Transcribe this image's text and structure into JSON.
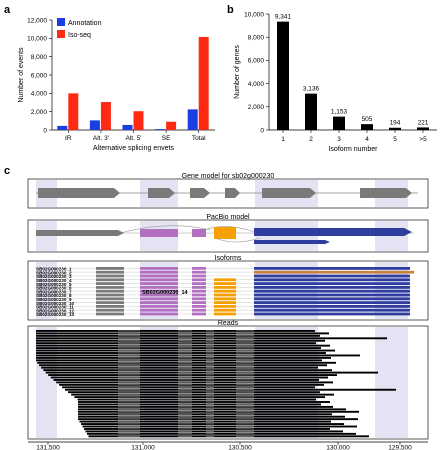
{
  "panel_labels": {
    "a": "a",
    "b": "b",
    "c": "c"
  },
  "chart_data": [
    {
      "type": "bar",
      "xlabel": "Alternative splicing envets",
      "ylabel": "Number of events",
      "categories": [
        "IR",
        "Alt. 3′",
        "Alt. 5′",
        "SE",
        "Total"
      ],
      "series": [
        {
          "name": "Annotation",
          "color": "#1a3fe0",
          "values": [
            450,
            1050,
            550,
            100,
            2250
          ]
        },
        {
          "name": "Iso-seq",
          "color": "#ff2a12",
          "values": [
            4000,
            3050,
            2050,
            900,
            10150
          ]
        }
      ],
      "ylim": [
        0,
        12000
      ],
      "yticks": [
        "0",
        "2,000",
        "4,000",
        "6,000",
        "8,000",
        "10,000",
        "12,000"
      ],
      "legend": "top-left"
    },
    {
      "type": "bar",
      "xlabel": "Isoform number",
      "ylabel": "Number of genes",
      "categories": [
        "1",
        "2",
        "3",
        "4",
        "5",
        ">5"
      ],
      "values": [
        9341,
        3136,
        1153,
        505,
        194,
        221
      ],
      "value_labels": [
        "9,341",
        "3,136",
        "1,153",
        "505",
        "194",
        "221"
      ],
      "ylim": [
        0,
        10000
      ],
      "yticks": [
        "0",
        "2,000",
        "4,000",
        "6,000",
        "8,000",
        "10,000"
      ],
      "color": "#000000"
    }
  ],
  "panel_c": {
    "gene_model_title": "Gene model for sb02g000230",
    "pacbio_title": "PacBio model",
    "isoforms_title": "Isoforms",
    "reads_title": "Reads",
    "isoform_highlight": "SB02G000230_14",
    "isoform_ids": [
      "SB02G000230_1",
      "SB02G000230_2",
      "SB02G000230_3",
      "SB02G000230_4",
      "SB02G000230_5",
      "SB02G000230_6",
      "SB02G000230_7",
      "SB02G000230_8",
      "SB02G000230_9",
      "SB02G000230_10",
      "SB02G000230_11",
      "SB02G000230_12",
      "SB02G000230_13"
    ],
    "genome_axis": [
      "131,500",
      "131,000",
      "130,500",
      "130,000",
      "129,500"
    ],
    "colors": {
      "gray_exon": "#7a7a7a",
      "purple_exon": "#b36fc0",
      "orange_exon": "#f5a000",
      "blue_exon": "#2f3e9e",
      "shade": "#e3e3f3"
    }
  }
}
